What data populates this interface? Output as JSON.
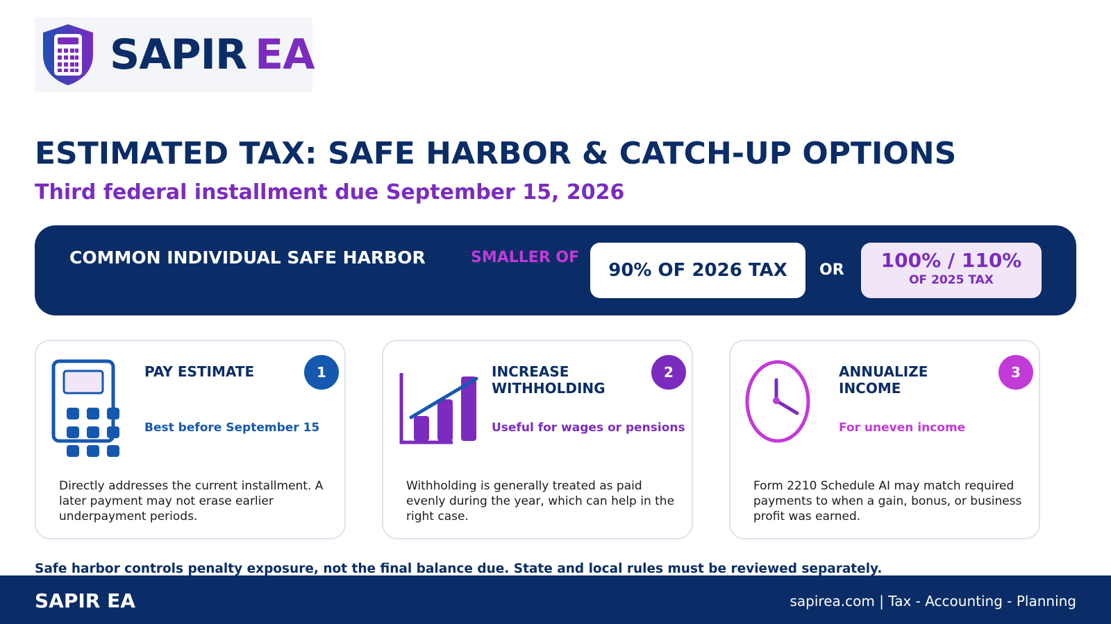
{
  "logo": {
    "word1": "SAPIR",
    "word2": "EA",
    "icon": "calculator-shield-icon"
  },
  "header": {
    "title": "ESTIMATED TAX: SAFE HARBOR & CATCH-UP OPTIONS",
    "subtitle": "Third federal installment due September 15, 2026"
  },
  "banner": {
    "label": "COMMON INDIVIDUAL SAFE HARBOR",
    "smaller_of": "SMALLER OF",
    "option_a": "90% OF 2026 TAX",
    "or": "OR",
    "option_b_main": "100% / 110%",
    "option_b_sub": "OF 2025 TAX"
  },
  "cards": [
    {
      "heading": "PAY ESTIMATE",
      "number": "1",
      "tag": "Best before September 15",
      "body": "Directly addresses the current installment. A later payment may not erase earlier underpayment periods.",
      "icon": "calculator-icon",
      "color": "#1558b0"
    },
    {
      "heading": "INCREASE WITHHOLDING",
      "number": "2",
      "tag": "Useful for wages or pensions",
      "body": "Withholding is generally treated as paid evenly during the year, which can help in the right case.",
      "icon": "bar-chart-icon",
      "color": "#7b2cbf"
    },
    {
      "heading": "ANNUALIZE INCOME",
      "number": "3",
      "tag": "For uneven income",
      "body": "Form 2210 Schedule AI may match required payments to when a gain, bonus, or business profit was earned.",
      "icon": "clock-icon",
      "color": "#c23ad8"
    }
  ],
  "note": "Safe harbor controls penalty exposure, not the final balance due. State and local rules must be reviewed separately.",
  "footer": {
    "brand": "SAPIR EA",
    "tagline": "sapirea.com | Tax - Accounting - Planning"
  },
  "colors": {
    "navy": "#0a2d67",
    "purple": "#7b2cbf",
    "magenta": "#c23ad8",
    "blue": "#1558b0"
  }
}
